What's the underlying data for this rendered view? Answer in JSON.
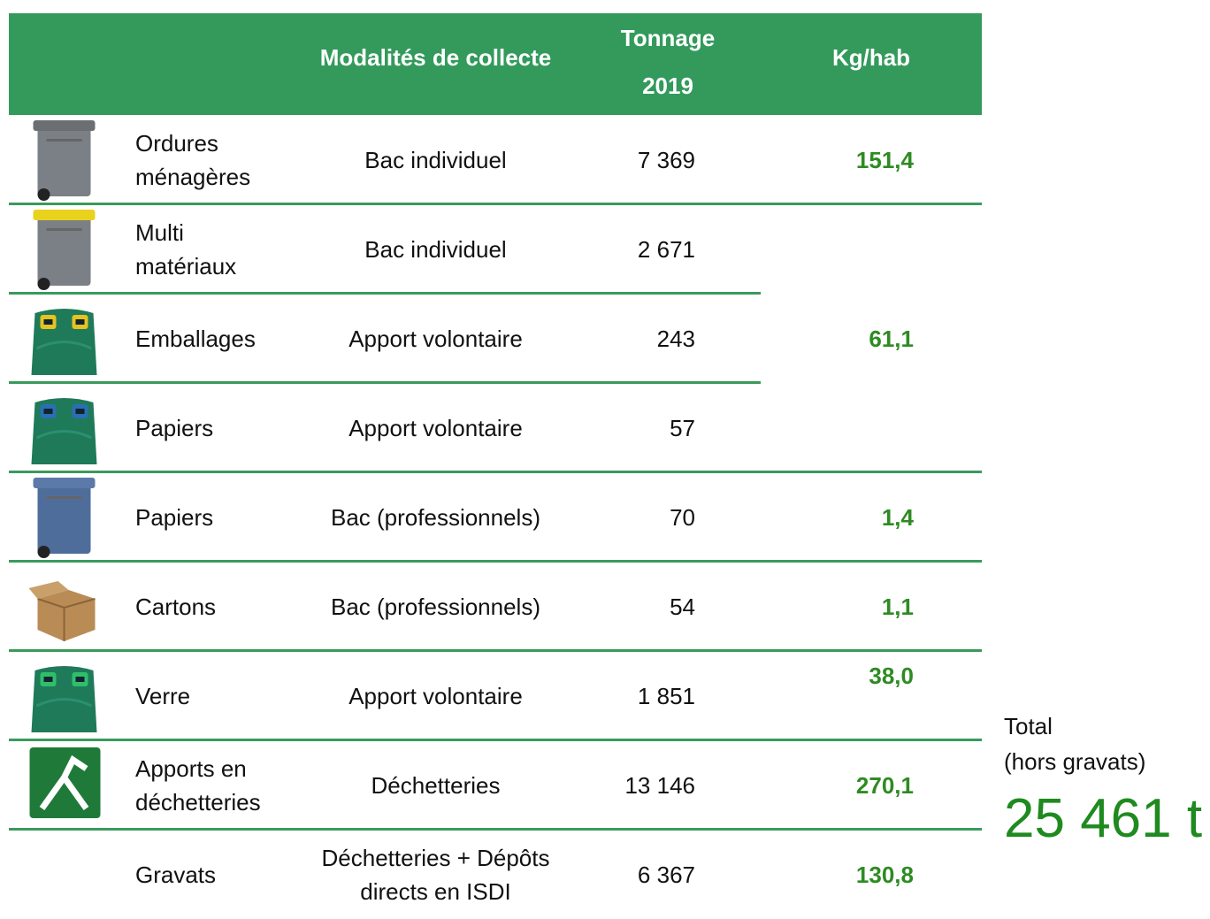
{
  "header": {
    "modalites": "Modalités de collecte",
    "tonnage": "Tonnage 2019",
    "kg_hab": "Kg/hab"
  },
  "rows": [
    {
      "name": "Ordures ménagères",
      "mode": "Bac individuel",
      "tonnage": "7 369",
      "kg_hab": "151,4"
    },
    {
      "name": "Multi matériaux",
      "mode": "Bac individuel",
      "tonnage": "2 671"
    },
    {
      "name": "Emballages",
      "mode": "Apport volontaire",
      "tonnage": "243",
      "kg_hab": "61,1"
    },
    {
      "name": "Papiers",
      "mode": "Apport volontaire",
      "tonnage": "57"
    },
    {
      "name": "Papiers",
      "mode": "Bac (professionnels)",
      "tonnage": "70",
      "kg_hab": "1,4"
    },
    {
      "name": "Cartons",
      "mode": "Bac (professionnels)",
      "tonnage": "54",
      "kg_hab": "1,1"
    },
    {
      "name": "Verre",
      "mode": "Apport volontaire",
      "tonnage": "1 851",
      "kg_hab": "38,0"
    },
    {
      "name": "Apports en déchetteries",
      "mode": "Déchetteries",
      "tonnage": "13 146",
      "kg_hab": "270,1"
    },
    {
      "name": "Gravats",
      "mode": "Déchetteries + Dépôts directs en ISDI",
      "tonnage": "6 367",
      "kg_hab": "130,8"
    }
  ],
  "total": {
    "label": "Total",
    "note": "(hors gravats)",
    "value": "25 461 t"
  }
}
